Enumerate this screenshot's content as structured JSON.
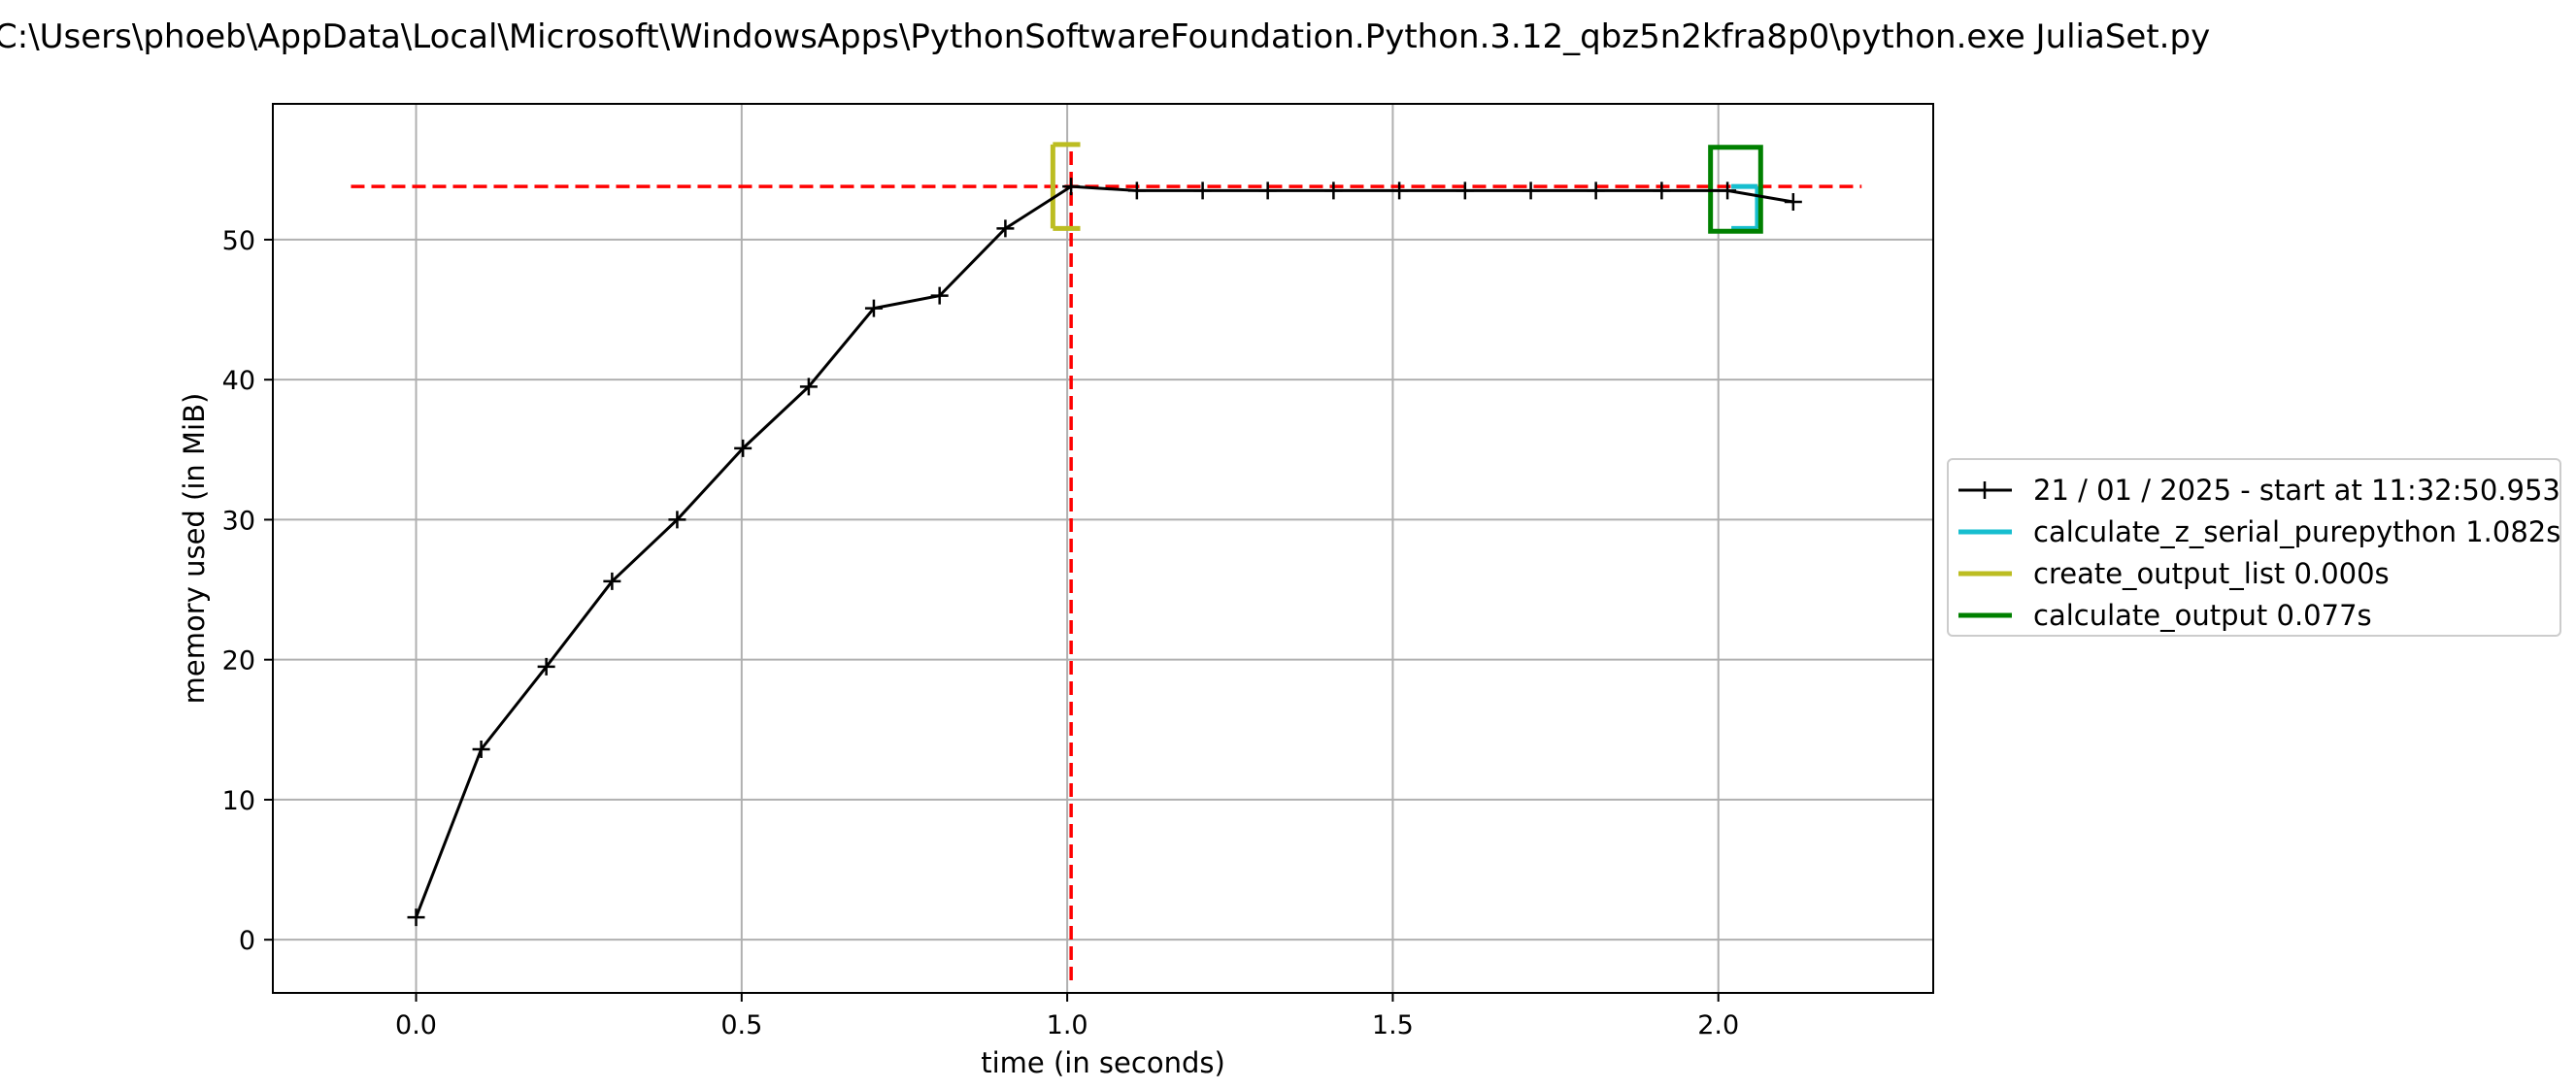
{
  "chart_data": {
    "type": "line",
    "title": "C:\\Users\\phoeb\\AppData\\Local\\Microsoft\\WindowsApps\\PythonSoftwareFoundation.Python.3.12_qbz5n2kfra8p0\\python.exe JuliaSet.py",
    "xlabel": "time (in seconds)",
    "ylabel": "memory used (in MiB)",
    "xlim": [
      -0.22,
      2.33
    ],
    "ylim": [
      -3.8,
      59.7
    ],
    "xticks": [
      0.0,
      0.5,
      1.0,
      1.5,
      2.0
    ],
    "xtick_labels": [
      "0.0",
      "0.5",
      "1.0",
      "1.5",
      "2.0"
    ],
    "yticks": [
      0,
      10,
      20,
      30,
      40,
      50
    ],
    "ytick_labels": [
      "0",
      "10",
      "20",
      "30",
      "40",
      "50"
    ],
    "grid": true,
    "legend_position": "center-right outside",
    "series": [
      {
        "name": "21 / 01 / 2025 - start at 11:32:50.953",
        "color": "#000000",
        "marker": "+",
        "x": [
          0.0,
          0.1,
          0.2,
          0.301,
          0.401,
          0.502,
          0.603,
          0.703,
          0.804,
          0.905,
          1.006,
          1.107,
          1.208,
          1.308,
          1.409,
          1.51,
          1.611,
          1.712,
          1.812,
          1.913,
          2.014,
          2.115
        ],
        "y": [
          1.6,
          13.6,
          19.5,
          25.6,
          30.0,
          35.1,
          39.5,
          45.1,
          46.0,
          50.8,
          53.8,
          53.5,
          53.5,
          53.5,
          53.5,
          53.5,
          53.5,
          53.5,
          53.5,
          53.5,
          53.5,
          52.7
        ]
      }
    ],
    "brackets": [
      {
        "name": "calculate_z_serial_purepython 1.082s",
        "color": "#17becf",
        "x_start": 2.06,
        "x_end": 2.06,
        "y_low": 50.8,
        "y_high": 53.8,
        "stub_x": 2.02
      },
      {
        "name": "create_output_list 0.000s",
        "color": "#bcbd22",
        "x_start": 0.978,
        "x_end": 0.978,
        "y_low": 50.8,
        "y_high": 56.8,
        "stub_x": 1.02
      },
      {
        "name": "calculate_output 0.077s",
        "color": "#008000",
        "x_start": 1.988,
        "x_end": 2.065,
        "y_low": 50.6,
        "y_high": 56.6
      }
    ],
    "peak_lines": {
      "y": 53.8,
      "x": 1.006,
      "color": "#ff0000"
    }
  },
  "legend": {
    "items": [
      {
        "label": "21 / 01 / 2025 - start at 11:32:50.953",
        "color": "#000000",
        "marker": "+"
      },
      {
        "label": "calculate_z_serial_purepython 1.082s",
        "color": "#17becf"
      },
      {
        "label": "create_output_list 0.000s",
        "color": "#bcbd22"
      },
      {
        "label": "calculate_output 0.077s",
        "color": "#008000"
      }
    ]
  }
}
